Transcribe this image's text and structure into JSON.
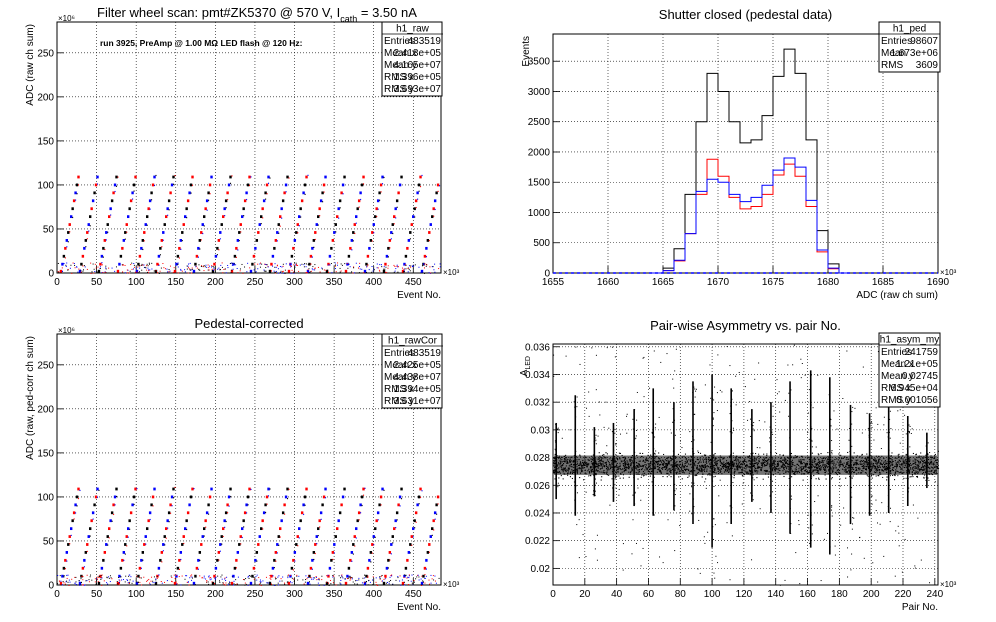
{
  "chart_data": [
    {
      "id": "raw",
      "type": "scatter",
      "title_main": "Filter wheel scan: pmt#ZK5370 @   570 V, I",
      "title_sub": "cath",
      "title_tail": " = 3.50 nA",
      "annotation": "run 3925, PreAmp @ 1.00 MΩ LED flash @  120 Hz:",
      "xlabel": "Event No.",
      "ylabel": "ADC (raw ch sum)",
      "x_exponent": "×10³",
      "y_exponent": "×10⁶",
      "xlim": [
        0,
        485
      ],
      "ylim": [
        0,
        285
      ],
      "xticks": [
        "0",
        "50",
        "100",
        "150",
        "200",
        "250",
        "300",
        "350",
        "400",
        "450"
      ],
      "yticks": [
        "0",
        "50",
        "100",
        "150",
        "200",
        "250"
      ],
      "xtick_values": [
        0,
        50,
        100,
        150,
        200,
        250,
        300,
        350,
        400,
        450
      ],
      "ytick_values": [
        0,
        50,
        100,
        150,
        200,
        250
      ],
      "levels": [
        2,
        10,
        19,
        28,
        37,
        46,
        55,
        64,
        73,
        82,
        91,
        100,
        109
      ],
      "cycle_width": 24,
      "colors": [
        "#ff0000",
        "#0000ff",
        "#000000"
      ],
      "stats": {
        "name": "h1_raw",
        "rows": [
          {
            "label": "Entries",
            "value": "483519"
          },
          {
            "label": "Mean x",
            "value": "2.418e+05"
          },
          {
            "label": "Mean y",
            "value": "4.165e+07"
          },
          {
            "label": "RMS x",
            "value": "1.396e+05"
          },
          {
            "label": "RMS y",
            "value": "3.693e+07"
          }
        ]
      }
    },
    {
      "id": "ped",
      "type": "line",
      "title": "Shutter closed (pedestal data)",
      "xlabel": "ADC (raw ch sum)",
      "ylabel": "Events",
      "x_exponent": "×10³",
      "xlim": [
        1655,
        1690
      ],
      "ylim": [
        0,
        3950
      ],
      "xticks": [
        "1655",
        "1660",
        "1665",
        "1670",
        "1675",
        "1680",
        "1685",
        "1690"
      ],
      "yticks": [
        "0",
        "500",
        "1000",
        "1500",
        "2000",
        "2500",
        "3000",
        "3500"
      ],
      "xtick_values": [
        1655,
        1660,
        1665,
        1670,
        1675,
        1680,
        1685,
        1690
      ],
      "ytick_values": [
        0,
        500,
        1000,
        1500,
        2000,
        2500,
        3000,
        3500
      ],
      "series": [
        {
          "color": "#000000",
          "x": [
            1664.5,
            1665.5,
            1666.5,
            1667.5,
            1668.5,
            1669.5,
            1670.5,
            1671.5,
            1672.5,
            1673.5,
            1674.5,
            1675.5,
            1676.5,
            1677.5,
            1678.5,
            1679.5,
            1680.5,
            1681.5
          ],
          "y": [
            0,
            80,
            400,
            1300,
            2500,
            3300,
            3000,
            2500,
            2150,
            2200,
            2600,
            3250,
            3700,
            3300,
            2200,
            700,
            150,
            0
          ]
        },
        {
          "color": "#ff0000",
          "x": [
            1664.5,
            1665.5,
            1666.5,
            1667.5,
            1668.5,
            1669.5,
            1670.5,
            1671.5,
            1672.5,
            1673.5,
            1674.5,
            1675.5,
            1676.5,
            1677.5,
            1678.5,
            1679.5,
            1680.5,
            1681.5
          ],
          "y": [
            0,
            40,
            200,
            650,
            1300,
            1880,
            1600,
            1250,
            1060,
            1100,
            1300,
            1620,
            1800,
            1600,
            1100,
            350,
            70,
            0
          ]
        },
        {
          "color": "#0000ff",
          "x": [
            1664.5,
            1665.5,
            1666.5,
            1667.5,
            1668.5,
            1669.5,
            1670.5,
            1671.5,
            1672.5,
            1673.5,
            1674.5,
            1675.5,
            1676.5,
            1677.5,
            1678.5,
            1679.5,
            1680.5,
            1681.5
          ],
          "y": [
            0,
            40,
            210,
            650,
            1350,
            1550,
            1500,
            1300,
            1180,
            1250,
            1450,
            1700,
            1900,
            1750,
            1200,
            380,
            80,
            0
          ]
        }
      ],
      "stats": {
        "name": "h1_ped",
        "rows": [
          {
            "label": "Entries",
            "value": "98607"
          },
          {
            "label": "Mean",
            "value": "1.673e+06"
          },
          {
            "label": "RMS",
            "value": "3609"
          }
        ]
      }
    },
    {
      "id": "rawcor",
      "type": "scatter",
      "title": "Pedestal-corrected",
      "xlabel": "Event No.",
      "ylabel": "ADC (raw, ped-corr ch sum)",
      "x_exponent": "×10³",
      "y_exponent": "×10⁶",
      "xlim": [
        0,
        485
      ],
      "ylim": [
        0,
        285
      ],
      "xticks": [
        "0",
        "50",
        "100",
        "150",
        "200",
        "250",
        "300",
        "350",
        "400",
        "450"
      ],
      "yticks": [
        "0",
        "50",
        "100",
        "150",
        "200",
        "250"
      ],
      "xtick_values": [
        0,
        50,
        100,
        150,
        200,
        250,
        300,
        350,
        400,
        450
      ],
      "ytick_values": [
        0,
        50,
        100,
        150,
        200,
        250
      ],
      "levels": [
        2,
        10,
        19,
        28,
        37,
        46,
        55,
        64,
        73,
        82,
        91,
        100,
        109
      ],
      "cycle_width": 24,
      "colors": [
        "#ff0000",
        "#0000ff",
        "#000000"
      ],
      "stats": {
        "name": "h1_rawCor",
        "rows": [
          {
            "label": "Entries",
            "value": "483519"
          },
          {
            "label": "Mean x",
            "value": "2.425e+05"
          },
          {
            "label": "Mean y",
            "value": "4.438e+07"
          },
          {
            "label": "RMS x",
            "value": "1.394e+05"
          },
          {
            "label": "RMS y",
            "value": "3.631e+07"
          }
        ]
      }
    },
    {
      "id": "asym",
      "type": "scatter",
      "title": "Pair-wise Asymmetry vs. pair No.",
      "xlabel": "Pair No.",
      "ylabel_main": "A",
      "ylabel_sub": "LED",
      "x_exponent": "×10³",
      "xlim": [
        0,
        242
      ],
      "ylim": [
        0.0188,
        0.0362
      ],
      "xticks": [
        "0",
        "20",
        "40",
        "60",
        "80",
        "100",
        "120",
        "140",
        "160",
        "180",
        "200",
        "220",
        "240"
      ],
      "yticks": [
        "0.02",
        "0.022",
        "0.024",
        "0.026",
        "0.028",
        "0.03",
        "0.032",
        "0.034",
        "0.036"
      ],
      "xtick_values": [
        0,
        20,
        40,
        60,
        80,
        100,
        120,
        140,
        160,
        180,
        200,
        220,
        240
      ],
      "ytick_values": [
        0.02,
        0.022,
        0.024,
        0.026,
        0.028,
        0.03,
        0.032,
        0.034,
        0.036
      ],
      "band_center": 0.02745,
      "band_halfwidth": 0.0007,
      "spike_x": [
        2,
        14,
        26,
        38,
        51,
        63,
        76,
        88,
        100,
        112,
        125,
        137,
        149,
        162,
        174,
        187,
        199,
        211,
        223,
        235
      ],
      "spike_top": [
        0.0305,
        0.0325,
        0.0302,
        0.0305,
        0.0315,
        0.033,
        0.032,
        0.0335,
        0.034,
        0.033,
        0.0315,
        0.032,
        0.0335,
        0.0343,
        0.0338,
        0.0318,
        0.0312,
        0.032,
        0.031,
        0.0298
      ],
      "spike_bottom": [
        0.025,
        0.0238,
        0.0252,
        0.0248,
        0.0245,
        0.0238,
        0.0242,
        0.0232,
        0.0215,
        0.0232,
        0.0248,
        0.024,
        0.0225,
        0.0215,
        0.021,
        0.0232,
        0.0238,
        0.024,
        0.0245,
        0.0258
      ],
      "stats": {
        "name": "h1_asym_my",
        "rows": [
          {
            "label": "Entries",
            "value": "241759"
          },
          {
            "label": "Mean x",
            "value": "1.21e+05"
          },
          {
            "label": "Mean y",
            "value": "0.02745"
          },
          {
            "label": "RMS x",
            "value": "6.945e+04"
          },
          {
            "label": "RMS y",
            "value": "0.001056"
          }
        ]
      }
    }
  ]
}
